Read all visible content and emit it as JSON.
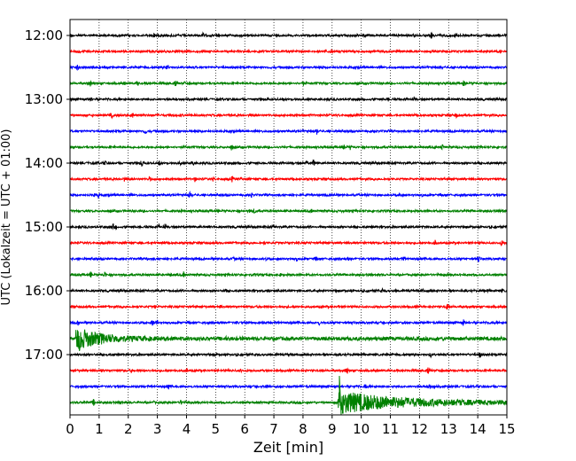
{
  "chart_data": {
    "type": "line",
    "xlabel": "Zeit  [min]",
    "ylabel": "UTC (Lokalzeit = UTC + 01:00)",
    "xlim": [
      0,
      15
    ],
    "x_ticks": [
      "0",
      "1",
      "2",
      "3",
      "4",
      "5",
      "6",
      "7",
      "8",
      "9",
      "10",
      "11",
      "12",
      "13",
      "14",
      "15"
    ],
    "y_ticks": [
      "12:00",
      "13:00",
      "14:00",
      "15:00",
      "16:00",
      "17:00"
    ],
    "grid": "vertical dotted",
    "trace_colors": [
      "#000000",
      "#ff0000",
      "#0000ff",
      "#008000"
    ],
    "traces_per_hour": 4,
    "trace_count": 24,
    "rows_start": "12:00",
    "minutes_per_row": 15,
    "events": [
      {
        "row_start": "16:45",
        "start_min": 0.2,
        "peak_min": 0.4,
        "decay_min": 2.0
      },
      {
        "row_start": "17:45",
        "start_min": 9.2,
        "peak_min": 9.25,
        "decay_min": 4.5
      }
    ]
  }
}
